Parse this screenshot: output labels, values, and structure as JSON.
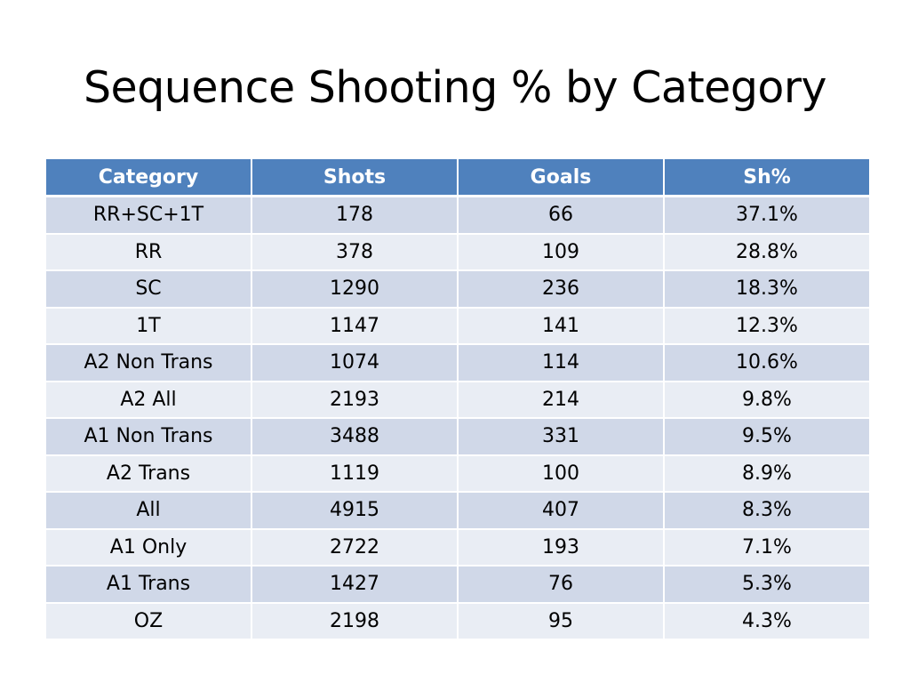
{
  "slide": {
    "title": "Sequence Shooting % by Category"
  },
  "table": {
    "columns": [
      "Category",
      "Shots",
      "Goals",
      "Sh%"
    ],
    "rows": [
      [
        "RR+SC+1T",
        "178",
        "66",
        "37.1%"
      ],
      [
        "RR",
        "378",
        "109",
        "28.8%"
      ],
      [
        "SC",
        "1290",
        "236",
        "18.3%"
      ],
      [
        "1T",
        "1147",
        "141",
        "12.3%"
      ],
      [
        "A2 Non Trans",
        "1074",
        "114",
        "10.6%"
      ],
      [
        "A2 All",
        "2193",
        "214",
        "9.8%"
      ],
      [
        "A1 Non Trans",
        "3488",
        "331",
        "9.5%"
      ],
      [
        "A2 Trans",
        "1119",
        "100",
        "8.9%"
      ],
      [
        "All",
        "4915",
        "407",
        "8.3%"
      ],
      [
        "A1 Only",
        "2722",
        "193",
        "7.1%"
      ],
      [
        "A1 Trans",
        "1427",
        "76",
        "5.3%"
      ],
      [
        "OZ",
        "2198",
        "95",
        "4.3%"
      ]
    ],
    "colors": {
      "header_bg": "#4f81bd",
      "header_text": "#ffffff",
      "row_odd": "#d0d8e8",
      "row_even": "#e9edf4"
    }
  }
}
